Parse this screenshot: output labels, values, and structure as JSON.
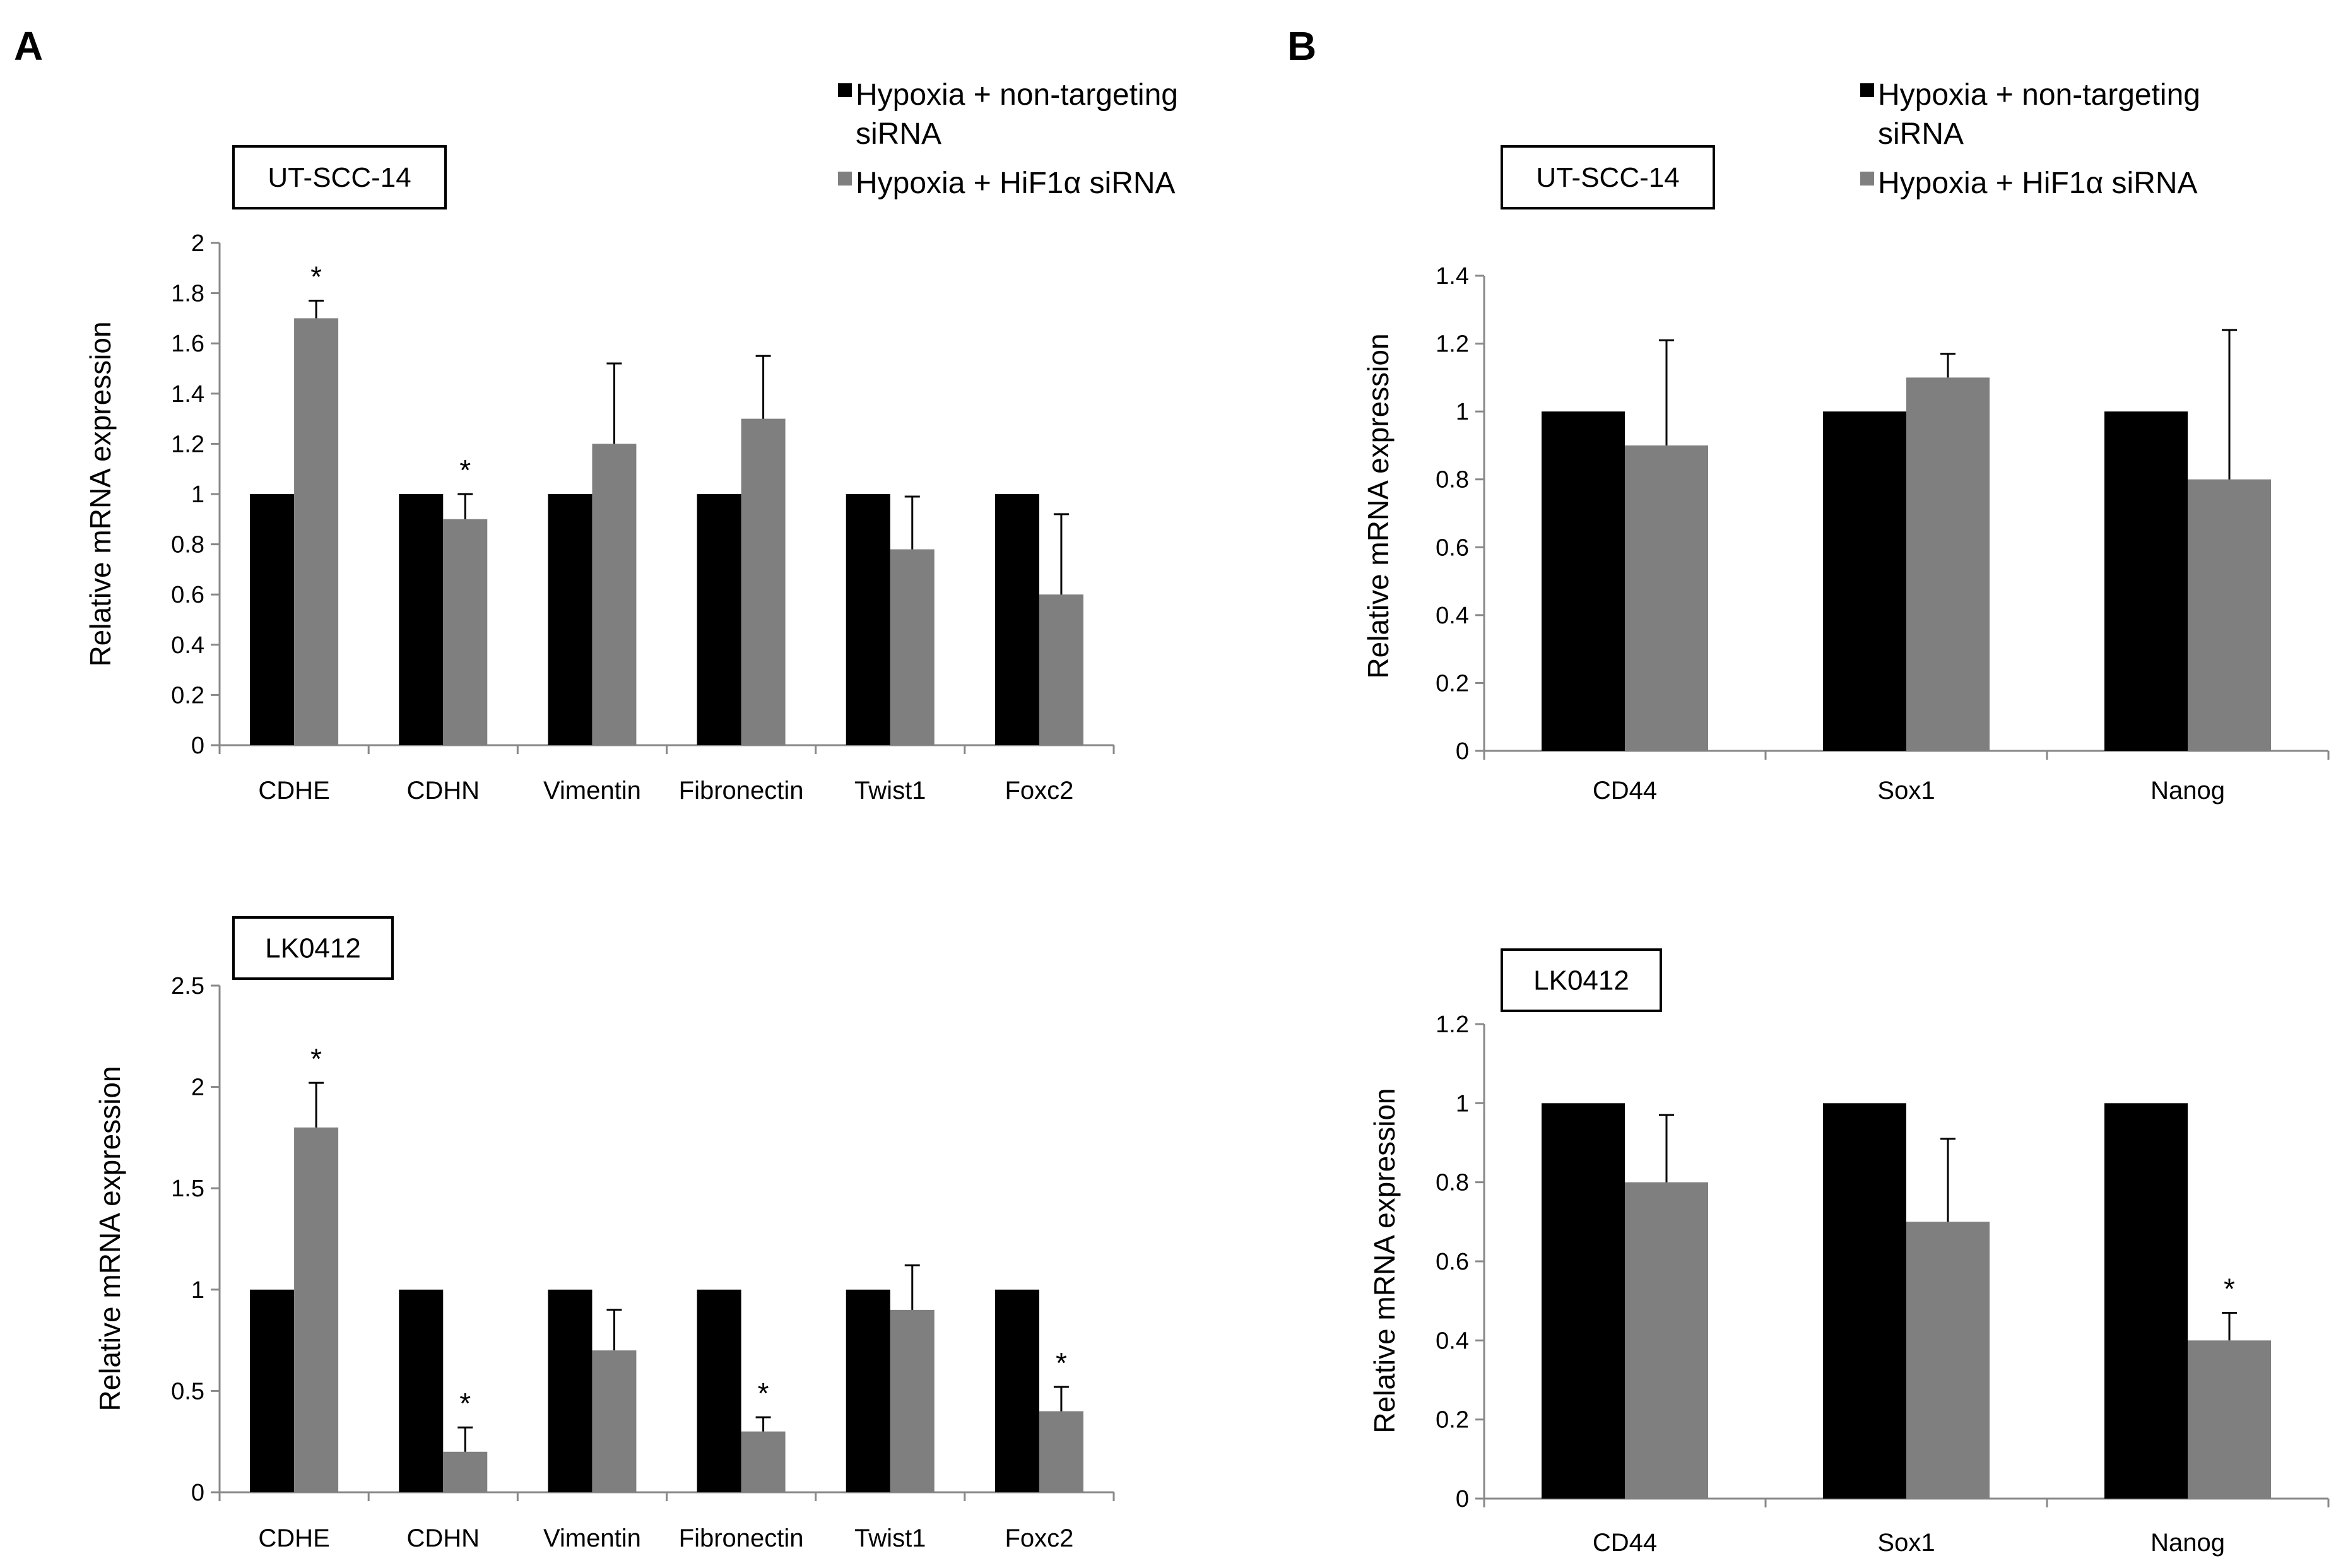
{
  "panels": [
    {
      "letter": "A"
    },
    {
      "letter": "B"
    }
  ],
  "legend": {
    "items": [
      {
        "line1": "Hypoxia + non-targeting",
        "line2": "siRNA",
        "color": "#000000"
      },
      {
        "line1": "Hypoxia + HiF1α siRNA",
        "line2": "",
        "color": "#7f7f7f"
      }
    ]
  },
  "chart_data": [
    {
      "type": "bar",
      "panel": "A",
      "cell_line": "UT-SCC-14",
      "ylabel": "Relative mRNA expression",
      "ylim": [
        0,
        2
      ],
      "yticks": [
        "0",
        "0.2",
        "0.4",
        "0.6",
        "0.8",
        "1",
        "1.2",
        "1.4",
        "1.6",
        "1.8",
        "2"
      ],
      "categories": [
        "CDHE",
        "CDHN",
        "Vimentin",
        "Fibronectin",
        "Twist1",
        "Foxc2"
      ],
      "series": [
        {
          "name": "Hypoxia + non-targeting siRNA",
          "color": "#000000",
          "values": [
            1,
            1,
            1,
            1,
            1,
            1
          ],
          "errors": [
            0,
            0,
            0,
            0,
            0,
            0
          ]
        },
        {
          "name": "Hypoxia + HiF1α siRNA",
          "color": "#7f7f7f",
          "values": [
            1.7,
            0.9,
            1.2,
            1.3,
            0.78,
            0.6
          ],
          "errors": [
            0.07,
            0.1,
            0.32,
            0.25,
            0.21,
            0.32
          ]
        }
      ],
      "significance": [
        "*",
        "*",
        "",
        "",
        "",
        ""
      ]
    },
    {
      "type": "bar",
      "panel": "A",
      "cell_line": "LK0412",
      "ylabel": "Relative mRNA expression",
      "ylim": [
        0,
        2.5
      ],
      "yticks": [
        "0",
        "0.5",
        "1",
        "1.5",
        "2",
        "2.5"
      ],
      "categories": [
        "CDHE",
        "CDHN",
        "Vimentin",
        "Fibronectin",
        "Twist1",
        "Foxc2"
      ],
      "series": [
        {
          "name": "Hypoxia + non-targeting siRNA",
          "color": "#000000",
          "values": [
            1,
            1,
            1,
            1,
            1,
            1
          ],
          "errors": [
            0,
            0,
            0,
            0,
            0,
            0
          ]
        },
        {
          "name": "Hypoxia + HiF1α siRNA",
          "color": "#7f7f7f",
          "values": [
            1.8,
            0.2,
            0.7,
            0.3,
            0.9,
            0.4
          ],
          "errors": [
            0.22,
            0.12,
            0.2,
            0.07,
            0.22,
            0.12
          ]
        }
      ],
      "significance": [
        "*",
        "*",
        "",
        "*",
        "",
        "*"
      ]
    },
    {
      "type": "bar",
      "panel": "B",
      "cell_line": "UT-SCC-14",
      "ylabel": "Relative mRNA expression",
      "ylim": [
        0,
        1.4
      ],
      "yticks": [
        "0",
        "0.2",
        "0.4",
        "0.6",
        "0.8",
        "1",
        "1.2",
        "1.4"
      ],
      "categories": [
        "CD44",
        "Sox1",
        "Nanog"
      ],
      "series": [
        {
          "name": "Hypoxia + non-targeting siRNA",
          "color": "#000000",
          "values": [
            1,
            1,
            1
          ],
          "errors": [
            0,
            0,
            0
          ]
        },
        {
          "name": "Hypoxia + HiF1α siRNA",
          "color": "#7f7f7f",
          "values": [
            0.9,
            1.1,
            0.8
          ],
          "errors": [
            0.31,
            0.07,
            0.44
          ]
        }
      ],
      "significance": [
        "",
        "",
        ""
      ]
    },
    {
      "type": "bar",
      "panel": "B",
      "cell_line": "LK0412",
      "ylabel": "Relative mRNA expression",
      "ylim": [
        0,
        1.2
      ],
      "yticks": [
        "0",
        "0.2",
        "0.4",
        "0.6",
        "0.8",
        "1",
        "1.2"
      ],
      "categories": [
        "CD44",
        "Sox1",
        "Nanog"
      ],
      "series": [
        {
          "name": "Hypoxia + non-targeting siRNA",
          "color": "#000000",
          "values": [
            1,
            1,
            1
          ],
          "errors": [
            0,
            0,
            0
          ]
        },
        {
          "name": "Hypoxia + HiF1α siRNA",
          "color": "#7f7f7f",
          "values": [
            0.8,
            0.7,
            0.4
          ],
          "errors": [
            0.17,
            0.21,
            0.07
          ]
        }
      ],
      "significance": [
        "",
        "",
        "*"
      ]
    }
  ]
}
